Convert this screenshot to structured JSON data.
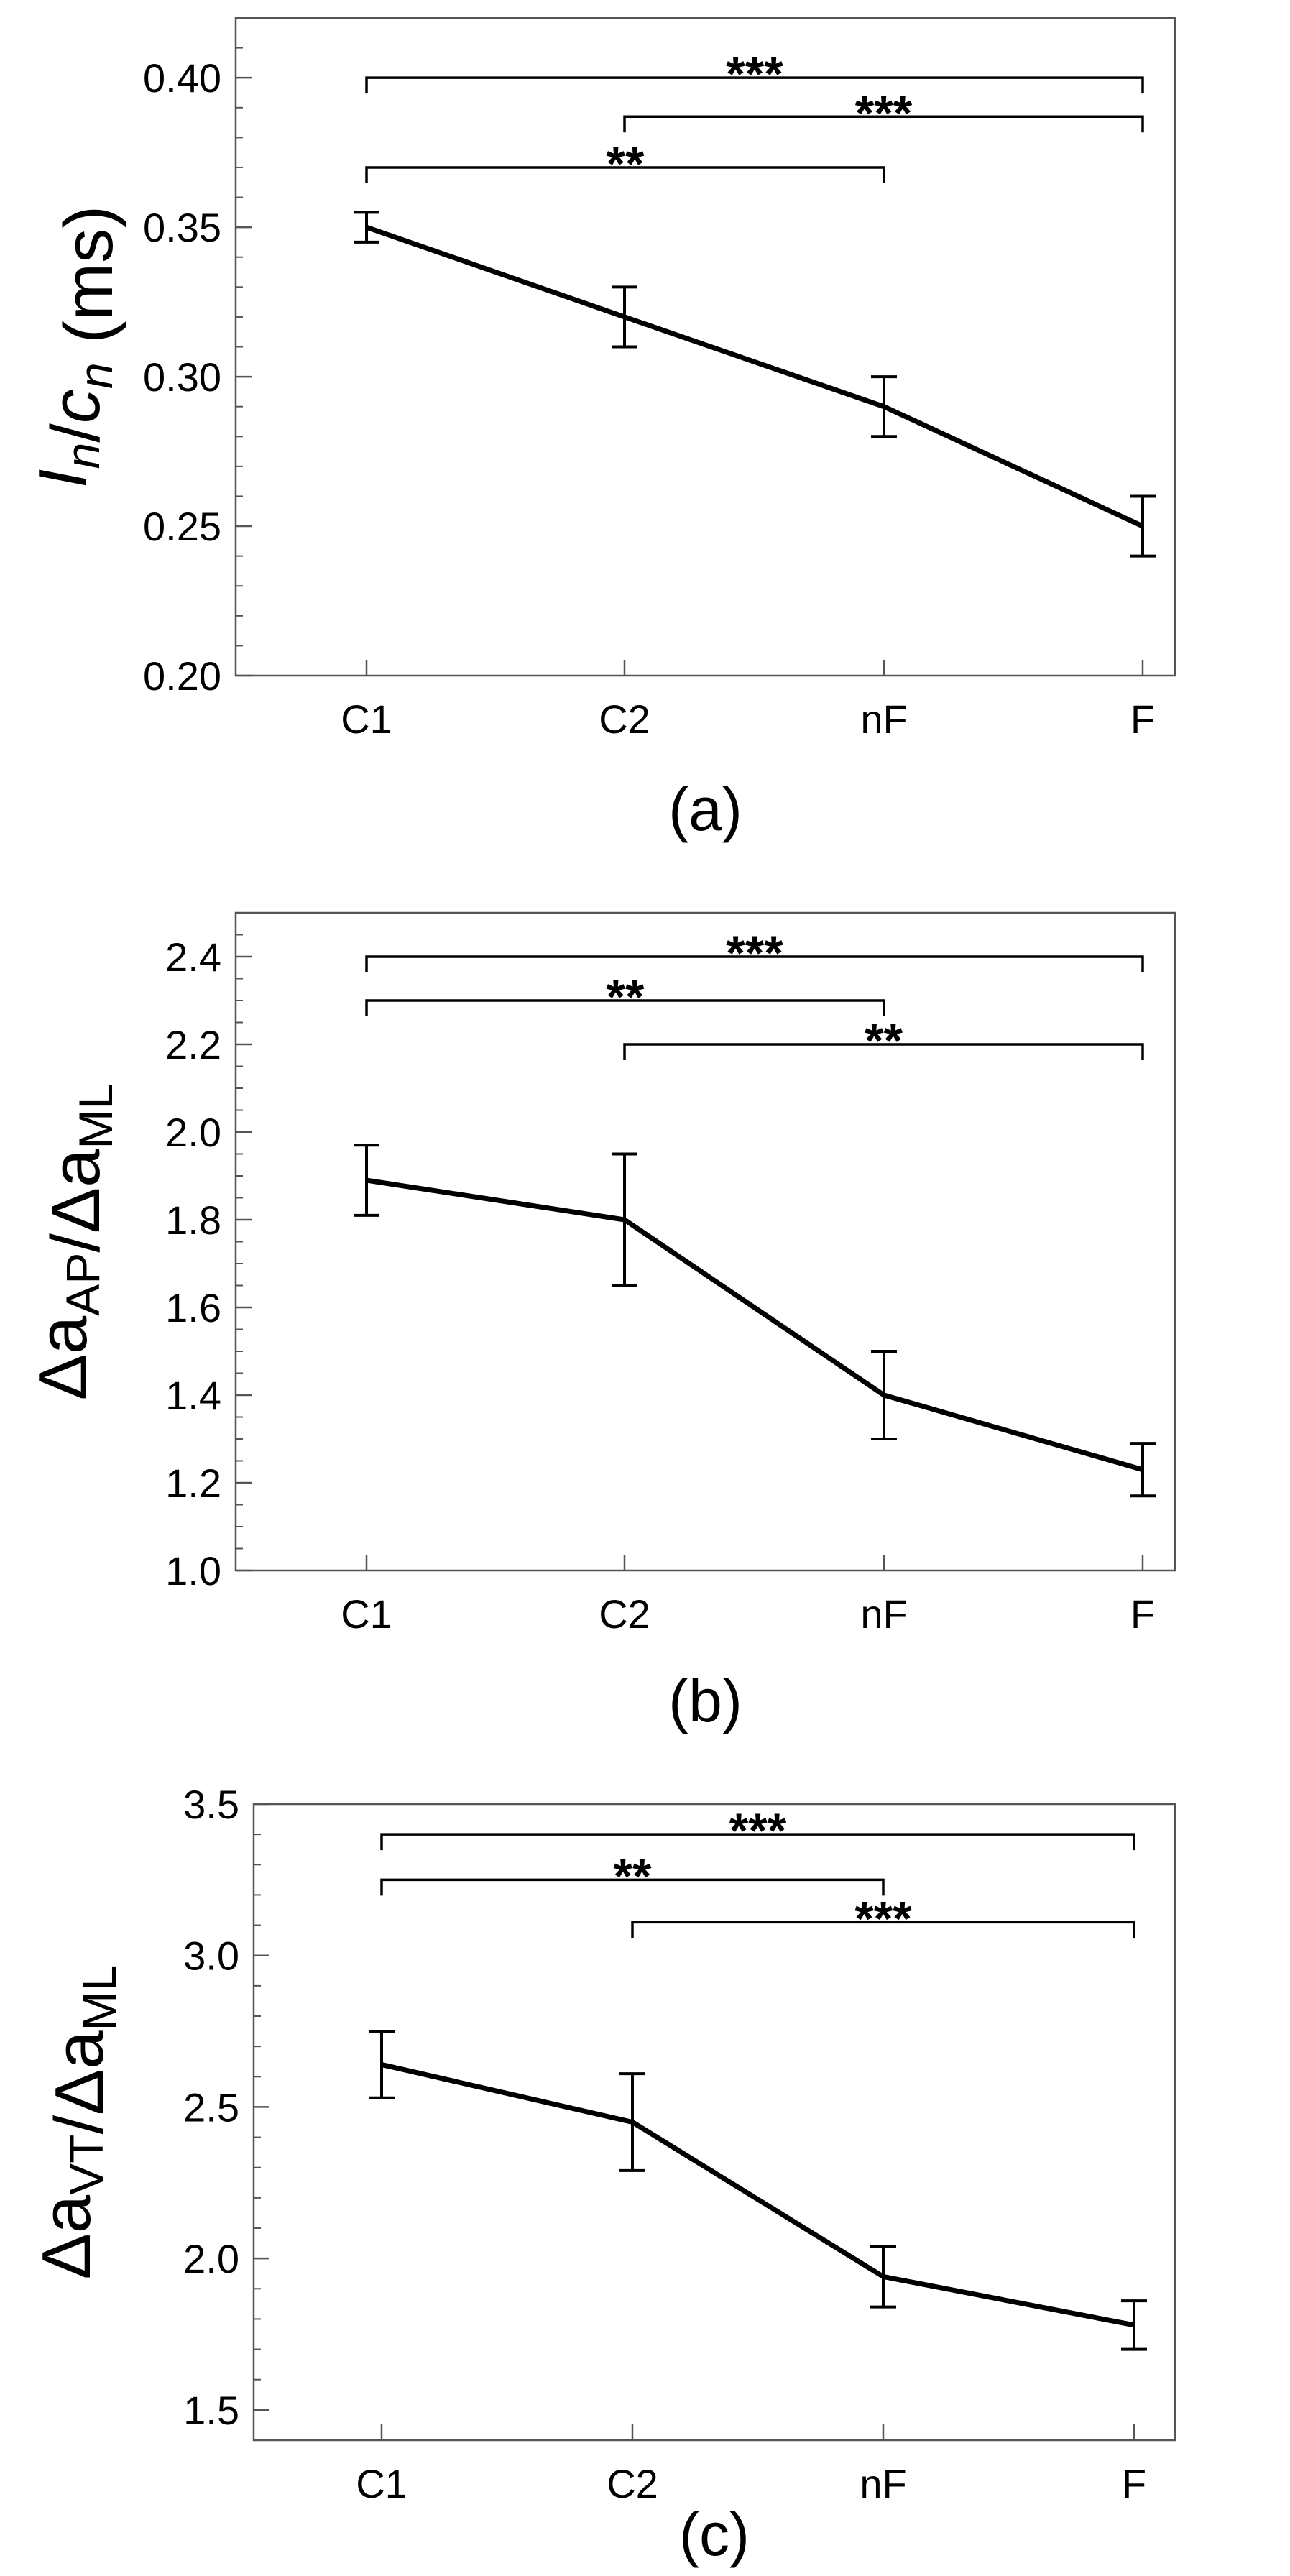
{
  "chart_data": [
    {
      "type": "line",
      "panel_label": "(a)",
      "ylabel": {
        "main": "I",
        "sub1": "n",
        "mid": "/",
        "main2": "c",
        "sub2": "n",
        "tail": " (ms)"
      },
      "categories": [
        "C1",
        "C2",
        "nF",
        "F"
      ],
      "values": [
        0.35,
        0.32,
        0.29,
        0.25
      ],
      "errors": [
        0.005,
        0.01,
        0.01,
        0.01
      ],
      "ylim": [
        0.2,
        0.42
      ],
      "yticks": [
        0.2,
        0.25,
        0.3,
        0.35,
        0.4
      ],
      "ytick_labels": [
        "0.20",
        "0.25",
        "0.30",
        "0.35",
        "0.40"
      ],
      "minor_step": 0.01,
      "significance": [
        {
          "from": 0,
          "to": 3,
          "level": 0.4,
          "label": "***"
        },
        {
          "from": 1,
          "to": 3,
          "level": 0.387,
          "label": "***"
        },
        {
          "from": 0,
          "to": 2,
          "level": 0.37,
          "label": "**"
        }
      ]
    },
    {
      "type": "line",
      "panel_label": "(b)",
      "ylabel": {
        "main": "Δa",
        "sub1": "AP",
        "mid": "/",
        "main2": "Δa",
        "sub2": "ML",
        "tail": ""
      },
      "categories": [
        "C1",
        "C2",
        "nF",
        "F"
      ],
      "values": [
        1.89,
        1.8,
        1.4,
        1.23
      ],
      "errors": [
        0.08,
        0.15,
        0.1,
        0.06
      ],
      "ylim": [
        1.0,
        2.5
      ],
      "yticks": [
        1.0,
        1.2,
        1.4,
        1.6,
        1.8,
        2.0,
        2.2,
        2.4
      ],
      "ytick_labels": [
        "1.0",
        "1.2",
        "1.4",
        "1.6",
        "1.8",
        "2.0",
        "2.2",
        "2.4"
      ],
      "minor_step": 0.05,
      "significance": [
        {
          "from": 0,
          "to": 3,
          "level": 2.4,
          "label": "***"
        },
        {
          "from": 0,
          "to": 2,
          "level": 2.3,
          "label": "**"
        },
        {
          "from": 1,
          "to": 3,
          "level": 2.2,
          "label": "**"
        }
      ]
    },
    {
      "type": "line",
      "panel_label": "(c)",
      "ylabel": {
        "main": "Δa",
        "sub1": "VT",
        "mid": "/",
        "main2": "Δa",
        "sub2": "ML",
        "tail": ""
      },
      "categories": [
        "C1",
        "C2",
        "nF",
        "F"
      ],
      "values": [
        2.64,
        2.45,
        1.94,
        1.78
      ],
      "errors": [
        0.11,
        0.16,
        0.1,
        0.08
      ],
      "ylim": [
        1.4,
        3.5
      ],
      "yticks": [
        1.5,
        2.0,
        2.5,
        3.0,
        3.5
      ],
      "ytick_labels": [
        "1.5",
        "2.0",
        "2.5",
        "3.0",
        "3.5"
      ],
      "minor_step": 0.1,
      "significance": [
        {
          "from": 0,
          "to": 3,
          "level": 3.4,
          "label": "***"
        },
        {
          "from": 0,
          "to": 2,
          "level": 3.25,
          "label": "**"
        },
        {
          "from": 1,
          "to": 3,
          "level": 3.11,
          "label": "***"
        }
      ]
    }
  ]
}
